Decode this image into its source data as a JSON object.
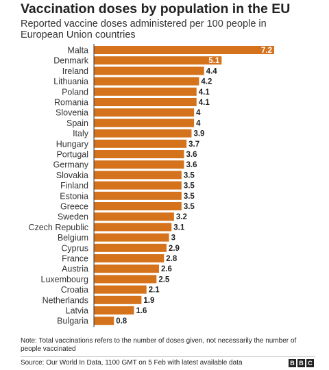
{
  "header": {
    "title": "Vaccination doses by population in the EU",
    "subtitle": "Reported vaccine doses administered per 100 people in European Union countries"
  },
  "footer": {
    "note": "Note: Total vaccinations refers to the number of doses given, not necessarily the number of people vaccinated",
    "source": "Source: Our World In Data, 1100 GMT on 5 Feb with latest available data",
    "logo_letters": [
      "B",
      "B",
      "C"
    ]
  },
  "colors": {
    "bar": "#d4731b",
    "label_inside": "#ffffff",
    "label_outside": "#222222"
  },
  "chart_data": {
    "type": "bar",
    "orientation": "horizontal",
    "title": "Vaccination doses by population in the EU",
    "subtitle": "Reported vaccine doses administered per 100 people in European Union countries",
    "xlim": [
      0,
      7.2
    ],
    "grid": false,
    "categories": [
      "Malta",
      "Denmark",
      "Ireland",
      "Lithuania",
      "Poland",
      "Romania",
      "Slovenia",
      "Spain",
      "Italy",
      "Hungary",
      "Portugal",
      "Germany",
      "Slovakia",
      "Finland",
      "Estonia",
      "Greece",
      "Sweden",
      "Czech Republic",
      "Belgium",
      "Cyprus",
      "France",
      "Austria",
      "Luxembourg",
      "Croatia",
      "Netherlands",
      "Latvia",
      "Bulgaria"
    ],
    "values": [
      7.2,
      5.1,
      4.4,
      4.2,
      4.1,
      4.1,
      4,
      4,
      3.9,
      3.7,
      3.6,
      3.6,
      3.5,
      3.5,
      3.5,
      3.5,
      3.2,
      3.1,
      3,
      2.9,
      2.8,
      2.6,
      2.5,
      2.1,
      1.9,
      1.6,
      0.8
    ],
    "labels_inside": [
      "Malta",
      "Denmark"
    ]
  }
}
